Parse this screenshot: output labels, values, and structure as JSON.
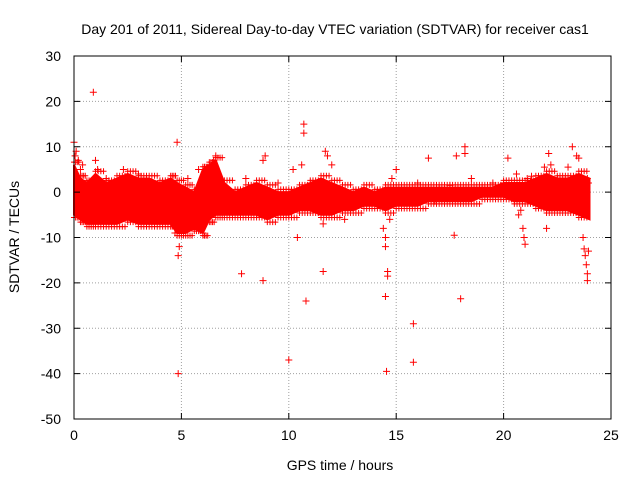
{
  "chart_data": {
    "type": "scatter",
    "title": "Day 201 of 2011, Sidereal Day-to-day VTEC variation (SDTVAR) for receiver cas1",
    "xlabel": "GPS time / hours",
    "ylabel": "SDTVAR / TECUs",
    "xlim": [
      0,
      25
    ],
    "ylim": [
      -50,
      30
    ],
    "xticks": [
      "0",
      "5",
      "10",
      "15",
      "20",
      "25"
    ],
    "yticks": [
      "30",
      "20",
      "10",
      "0",
      "-10",
      "-20",
      "-30",
      "-40",
      "-50"
    ],
    "grid": true,
    "marker": "+",
    "series_color": "#ff0000",
    "series": [
      {
        "name": "SDTVAR",
        "points": [
          [
            0.0,
            11
          ],
          [
            0.05,
            8
          ],
          [
            0.1,
            9
          ],
          [
            0.2,
            7
          ],
          [
            0.3,
            5
          ],
          [
            0.4,
            6
          ],
          [
            0.5,
            -4
          ],
          [
            0.9,
            22
          ],
          [
            1.0,
            7
          ],
          [
            1.1,
            5
          ],
          [
            1.5,
            3
          ],
          [
            2.0,
            -5
          ],
          [
            2.3,
            5
          ],
          [
            2.5,
            -6
          ],
          [
            3.0,
            4
          ],
          [
            3.5,
            -5
          ],
          [
            4.0,
            -3
          ],
          [
            4.5,
            2
          ],
          [
            4.7,
            -9
          ],
          [
            4.8,
            11
          ],
          [
            4.85,
            -14
          ],
          [
            4.9,
            -12
          ],
          [
            4.85,
            -40
          ],
          [
            5.0,
            -8
          ],
          [
            5.3,
            3
          ],
          [
            5.8,
            5
          ],
          [
            6.0,
            -9
          ],
          [
            6.3,
            6
          ],
          [
            6.5,
            7
          ],
          [
            6.6,
            8
          ],
          [
            7.0,
            -4
          ],
          [
            7.5,
            -2
          ],
          [
            7.8,
            -18
          ],
          [
            8.0,
            3
          ],
          [
            8.5,
            -5
          ],
          [
            8.8,
            7
          ],
          [
            8.9,
            8
          ],
          [
            8.8,
            -19.5
          ],
          [
            9.0,
            -4
          ],
          [
            9.5,
            2
          ],
          [
            10.0,
            -5
          ],
          [
            10.0,
            -37
          ],
          [
            10.2,
            5
          ],
          [
            10.4,
            -10
          ],
          [
            10.6,
            6
          ],
          [
            10.7,
            15
          ],
          [
            10.7,
            13
          ],
          [
            10.8,
            -24
          ],
          [
            11.0,
            2
          ],
          [
            11.3,
            -3
          ],
          [
            11.5,
            -5
          ],
          [
            11.6,
            -7
          ],
          [
            11.6,
            -17.5
          ],
          [
            11.7,
            9
          ],
          [
            11.8,
            8
          ],
          [
            12.0,
            6
          ],
          [
            12.5,
            -1
          ],
          [
            12.6,
            -6
          ],
          [
            13.0,
            -3
          ],
          [
            13.5,
            0
          ],
          [
            14.0,
            -2
          ],
          [
            14.4,
            -8
          ],
          [
            14.5,
            -10
          ],
          [
            14.5,
            -12
          ],
          [
            14.5,
            -23
          ],
          [
            14.55,
            -39.5
          ],
          [
            14.6,
            -18.5
          ],
          [
            14.6,
            -17.5
          ],
          [
            14.7,
            -6
          ],
          [
            14.8,
            3
          ],
          [
            15.0,
            5
          ],
          [
            15.1,
            -2
          ],
          [
            15.5,
            0
          ],
          [
            15.8,
            -29
          ],
          [
            15.8,
            -37.5
          ],
          [
            16.0,
            2
          ],
          [
            16.5,
            7.5
          ],
          [
            16.8,
            -2
          ],
          [
            17.0,
            1
          ],
          [
            17.5,
            1.5
          ],
          [
            17.7,
            -9.5
          ],
          [
            17.8,
            8
          ],
          [
            18.0,
            -23.5
          ],
          [
            18.2,
            8.5
          ],
          [
            18.2,
            10
          ],
          [
            18.5,
            3
          ],
          [
            19.0,
            1
          ],
          [
            19.5,
            2
          ],
          [
            20.0,
            2
          ],
          [
            20.2,
            7.5
          ],
          [
            20.5,
            -2
          ],
          [
            20.6,
            4
          ],
          [
            20.7,
            -5
          ],
          [
            20.8,
            -4
          ],
          [
            20.9,
            -8
          ],
          [
            20.95,
            -10
          ],
          [
            21.0,
            -11.5
          ],
          [
            21.1,
            3
          ],
          [
            21.3,
            3.5
          ],
          [
            21.5,
            1
          ],
          [
            21.7,
            -2
          ],
          [
            21.9,
            5.5
          ],
          [
            22.0,
            -8
          ],
          [
            22.1,
            8.5
          ],
          [
            22.2,
            6
          ],
          [
            22.5,
            3
          ],
          [
            23.0,
            5.5
          ],
          [
            23.2,
            10
          ],
          [
            23.3,
            3
          ],
          [
            23.4,
            8
          ],
          [
            23.5,
            7.5
          ],
          [
            23.6,
            -3
          ],
          [
            23.7,
            -10
          ],
          [
            23.75,
            -12.5
          ],
          [
            23.8,
            -14
          ],
          [
            23.85,
            -16
          ],
          [
            23.9,
            -18
          ],
          [
            23.9,
            -19.5
          ],
          [
            23.95,
            -13
          ],
          [
            23.9,
            3
          ],
          [
            23.95,
            2
          ]
        ]
      }
    ],
    "band": {
      "x": [
        0,
        0.3,
        0.6,
        1.0,
        1.5,
        2.0,
        2.5,
        3.0,
        3.5,
        4.0,
        4.5,
        4.8,
        5.2,
        5.6,
        6.0,
        6.3,
        6.6,
        7.0,
        7.5,
        8.0,
        8.5,
        9.0,
        9.5,
        10.0,
        10.5,
        11.0,
        11.5,
        12.0,
        12.5,
        13.0,
        13.5,
        14.0,
        14.5,
        15.0,
        15.5,
        16.0,
        16.5,
        17.0,
        17.5,
        18.0,
        18.5,
        19.0,
        19.5,
        20.0,
        20.5,
        21.0,
        21.5,
        22.0,
        22.5,
        23.0,
        23.5,
        24.0
      ],
      "upper": [
        6,
        3,
        2,
        4,
        2,
        3,
        4,
        3,
        3,
        2,
        3,
        2,
        1,
        0,
        5,
        6,
        7,
        2,
        0,
        1,
        2,
        1,
        0,
        0,
        1,
        2,
        3,
        2,
        1,
        0,
        1,
        0,
        1,
        1,
        1,
        1,
        1,
        1,
        1,
        1,
        1,
        1,
        1,
        2,
        2,
        2,
        3,
        4,
        3,
        3,
        4,
        3
      ],
      "lower": [
        -5,
        -6,
        -7,
        -7,
        -7,
        -7,
        -6,
        -7,
        -7,
        -7,
        -7,
        -9,
        -9,
        -8,
        -9,
        -6,
        -5,
        -5,
        -5,
        -5,
        -5,
        -6,
        -5,
        -5,
        -4,
        -4,
        -5,
        -5,
        -4,
        -4,
        -3,
        -3,
        -4,
        -3,
        -3,
        -3,
        -2,
        -2,
        -2,
        -2,
        -2,
        -1,
        -1,
        -1,
        -2,
        -2,
        -3,
        -4,
        -4,
        -4,
        -5,
        -6
      ]
    }
  }
}
